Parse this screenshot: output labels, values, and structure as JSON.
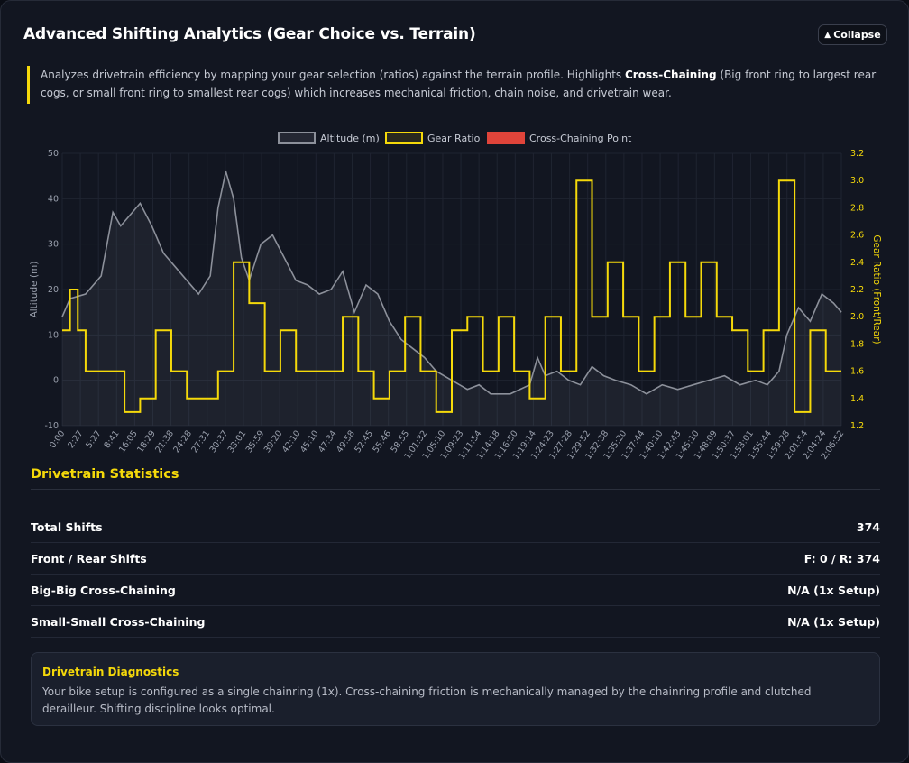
{
  "header": {
    "title": "Advanced Shifting Analytics (Gear Choice vs. Terrain)",
    "collapse_label": "Collapse"
  },
  "description": {
    "before": "Analyzes drivetrain efficiency by mapping your gear selection (ratios) against the terrain profile. Highlights ",
    "bold": "Cross-Chaining",
    "after": " (Big front ring to largest rear cogs, or small front ring to smallest rear cogs) which increases mechanical friction, chain noise, and drivetrain wear."
  },
  "chart_data": {
    "type": "line",
    "legend": [
      "Altitude (m)",
      "Gear Ratio",
      "Cross-Chaining Point"
    ],
    "legend_position": "top-center",
    "y_left_label": "Altitude (m)",
    "y_right_label": "Gear Ratio (Front/Rear)",
    "y_left_range": [
      -10,
      50
    ],
    "y_left_ticks": [
      -10,
      0,
      10,
      20,
      30,
      40,
      50
    ],
    "y_right_range": [
      1.2,
      3.2
    ],
    "y_right_ticks": [
      "1.2",
      "1.4",
      "1.6",
      "1.8",
      "2.0",
      "2.2",
      "2.4",
      "2.6",
      "2.8",
      "3.0",
      "3.2"
    ],
    "x_ticks": [
      "0:00",
      "2:27",
      "5:27",
      "8:41",
      "16:05",
      "18:29",
      "21:38",
      "24:28",
      "27:31",
      "30:37",
      "33:01",
      "35:59",
      "39:20",
      "42:10",
      "45:10",
      "47:34",
      "49:58",
      "52:45",
      "55:46",
      "58:55",
      "1:01:32",
      "1:05:10",
      "1:09:23",
      "1:11:54",
      "1:14:18",
      "1:16:50",
      "1:19:14",
      "1:24:23",
      "1:27:28",
      "1:29:52",
      "1:32:38",
      "1:35:20",
      "1:37:44",
      "1:40:10",
      "1:42:43",
      "1:45:10",
      "1:48:09",
      "1:50:37",
      "1:53:01",
      "1:55:44",
      "1:59:28",
      "2:01:54",
      "2:04:24",
      "2:06:52"
    ],
    "series": [
      {
        "name": "Altitude (m)",
        "color": "#8c909a",
        "points": [
          [
            0,
            14
          ],
          [
            0.01,
            18
          ],
          [
            0.03,
            19
          ],
          [
            0.05,
            23
          ],
          [
            0.065,
            37
          ],
          [
            0.075,
            34
          ],
          [
            0.085,
            36
          ],
          [
            0.1,
            39
          ],
          [
            0.115,
            34
          ],
          [
            0.13,
            28
          ],
          [
            0.145,
            25
          ],
          [
            0.16,
            22
          ],
          [
            0.175,
            19
          ],
          [
            0.19,
            23
          ],
          [
            0.2,
            38
          ],
          [
            0.21,
            46
          ],
          [
            0.22,
            40
          ],
          [
            0.23,
            27
          ],
          [
            0.24,
            22
          ],
          [
            0.255,
            30
          ],
          [
            0.27,
            32
          ],
          [
            0.285,
            27
          ],
          [
            0.3,
            22
          ],
          [
            0.315,
            21
          ],
          [
            0.33,
            19
          ],
          [
            0.345,
            20
          ],
          [
            0.36,
            24
          ],
          [
            0.375,
            15
          ],
          [
            0.39,
            21
          ],
          [
            0.405,
            19
          ],
          [
            0.42,
            13
          ],
          [
            0.435,
            9
          ],
          [
            0.45,
            7
          ],
          [
            0.465,
            5
          ],
          [
            0.48,
            2
          ],
          [
            0.5,
            0
          ],
          [
            0.52,
            -2
          ],
          [
            0.535,
            -1
          ],
          [
            0.55,
            -3
          ],
          [
            0.575,
            -3
          ],
          [
            0.6,
            -1
          ],
          [
            0.61,
            5
          ],
          [
            0.62,
            1
          ],
          [
            0.635,
            2
          ],
          [
            0.65,
            0
          ],
          [
            0.665,
            -1
          ],
          [
            0.68,
            3
          ],
          [
            0.695,
            1
          ],
          [
            0.71,
            0
          ],
          [
            0.73,
            -1
          ],
          [
            0.75,
            -3
          ],
          [
            0.77,
            -1
          ],
          [
            0.79,
            -2
          ],
          [
            0.81,
            -1
          ],
          [
            0.83,
            0
          ],
          [
            0.85,
            1
          ],
          [
            0.87,
            -1
          ],
          [
            0.89,
            0
          ],
          [
            0.905,
            -1
          ],
          [
            0.92,
            2
          ],
          [
            0.93,
            10
          ],
          [
            0.945,
            16
          ],
          [
            0.96,
            13
          ],
          [
            0.975,
            19
          ],
          [
            0.99,
            17
          ],
          [
            1.0,
            15
          ]
        ]
      },
      {
        "name": "Gear Ratio",
        "color": "#f5d90a",
        "points": [
          [
            0,
            1.9
          ],
          [
            0.01,
            2.2
          ],
          [
            0.02,
            1.9
          ],
          [
            0.03,
            1.6
          ],
          [
            0.04,
            1.6
          ],
          [
            0.05,
            1.6
          ],
          [
            0.06,
            1.6
          ],
          [
            0.08,
            1.3
          ],
          [
            0.1,
            1.4
          ],
          [
            0.12,
            1.9
          ],
          [
            0.14,
            1.6
          ],
          [
            0.16,
            1.4
          ],
          [
            0.18,
            1.4
          ],
          [
            0.2,
            1.6
          ],
          [
            0.22,
            2.4
          ],
          [
            0.24,
            2.1
          ],
          [
            0.26,
            1.6
          ],
          [
            0.28,
            1.9
          ],
          [
            0.3,
            1.6
          ],
          [
            0.32,
            1.6
          ],
          [
            0.34,
            1.6
          ],
          [
            0.36,
            2.0
          ],
          [
            0.38,
            1.6
          ],
          [
            0.4,
            1.4
          ],
          [
            0.42,
            1.6
          ],
          [
            0.44,
            2.0
          ],
          [
            0.46,
            1.6
          ],
          [
            0.48,
            1.3
          ],
          [
            0.5,
            1.9
          ],
          [
            0.52,
            2.0
          ],
          [
            0.54,
            1.6
          ],
          [
            0.56,
            2.0
          ],
          [
            0.58,
            1.6
          ],
          [
            0.6,
            1.4
          ],
          [
            0.62,
            2.0
          ],
          [
            0.64,
            1.6
          ],
          [
            0.66,
            3.0
          ],
          [
            0.68,
            2.0
          ],
          [
            0.7,
            2.4
          ],
          [
            0.72,
            2.0
          ],
          [
            0.74,
            1.6
          ],
          [
            0.76,
            2.0
          ],
          [
            0.78,
            2.4
          ],
          [
            0.8,
            2.0
          ],
          [
            0.82,
            2.4
          ],
          [
            0.84,
            2.0
          ],
          [
            0.86,
            1.9
          ],
          [
            0.88,
            1.6
          ],
          [
            0.9,
            1.9
          ],
          [
            0.92,
            3.0
          ],
          [
            0.94,
            1.3
          ],
          [
            0.96,
            1.9
          ],
          [
            0.98,
            1.6
          ],
          [
            1.0,
            1.6
          ]
        ]
      },
      {
        "name": "Cross-Chaining Point",
        "color": "#e0443a",
        "points": []
      }
    ],
    "grid": true
  },
  "stats": {
    "title": "Drivetrain Statistics",
    "rows": [
      {
        "label": "Total Shifts",
        "value": "374"
      },
      {
        "label": "Front / Rear Shifts",
        "value": "F: 0 / R: 374"
      },
      {
        "label": "Big-Big Cross-Chaining",
        "value": "N/A (1x Setup)"
      },
      {
        "label": "Small-Small Cross-Chaining",
        "value": "N/A (1x Setup)"
      }
    ]
  },
  "diagnostics": {
    "title": "Drivetrain Diagnostics",
    "text": "Your bike setup is configured as a single chainring (1x). Cross-chaining friction is mechanically managed by the chainring profile and clutched derailleur. Shifting discipline looks optimal."
  },
  "colors": {
    "accent": "#f5d90a",
    "altitude": "#8c909a",
    "cross_chain": "#e0443a",
    "background": "#121621"
  }
}
